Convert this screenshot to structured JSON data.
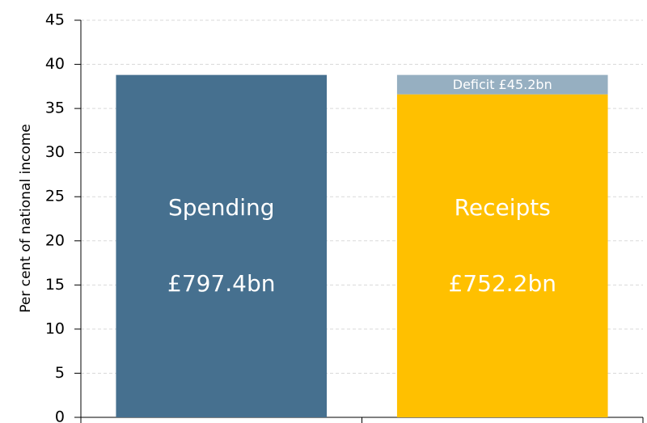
{
  "chart_data": {
    "type": "bar",
    "ylabel": "Per cent of national income",
    "ylim": [
      0,
      45
    ],
    "yticks": [
      0,
      5,
      10,
      15,
      20,
      25,
      30,
      35,
      40,
      45
    ],
    "grid": true,
    "bars": [
      {
        "label": "Spending",
        "amount": "£797.4bn",
        "value": 38.8,
        "color": "#46708f"
      },
      {
        "label": "Receipts",
        "amount": "£752.2bn",
        "value": 36.6,
        "color": "#ffc000",
        "stack": {
          "label": "Deficit £45.2bn",
          "value": 2.2,
          "color": "#96afc1"
        }
      }
    ]
  }
}
